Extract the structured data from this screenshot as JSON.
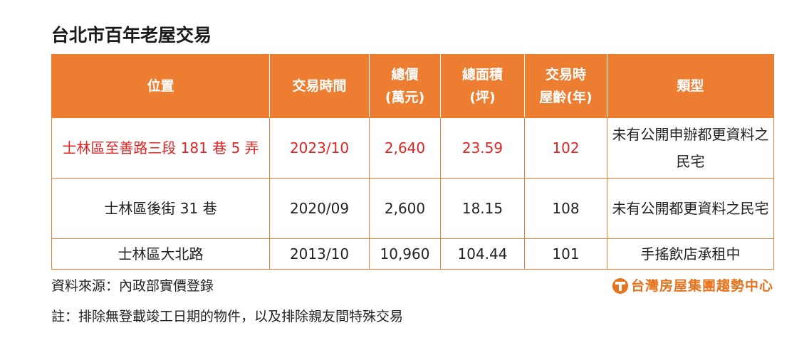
{
  "title": "台北市百年老屋交易",
  "table": {
    "headers": [
      "位置",
      "交易時間",
      "總價\n(萬元)",
      "總面積\n(坪)",
      "交易時\n屋齡(年)",
      "類型"
    ],
    "rows": [
      [
        "士林區至善路三段 181 巷 5 弄",
        "2023/10",
        "2,640",
        "23.59",
        "102",
        "未有公開申辦都更資料之民宅"
      ],
      [
        "士林區後街 31 巷",
        "2020/09",
        "2,600",
        "18.15",
        "108",
        "未有公開都更資料之民宅"
      ],
      [
        "士林區大北路",
        "2013/10",
        "10,960",
        "104.44",
        "101",
        "手搖飲店承租中"
      ]
    ],
    "header_color": "#ed7d31",
    "highlight_color": "#e02424"
  },
  "source": "資料來源：內政部實價登錄",
  "logo": {
    "text": "台灣房屋集團趨勢中心",
    "icon": "taiwan-realty-logo-icon",
    "color": "#e8731f"
  },
  "note": "註：排除無登載竣工日期的物件，以及排除親友間特殊交易"
}
